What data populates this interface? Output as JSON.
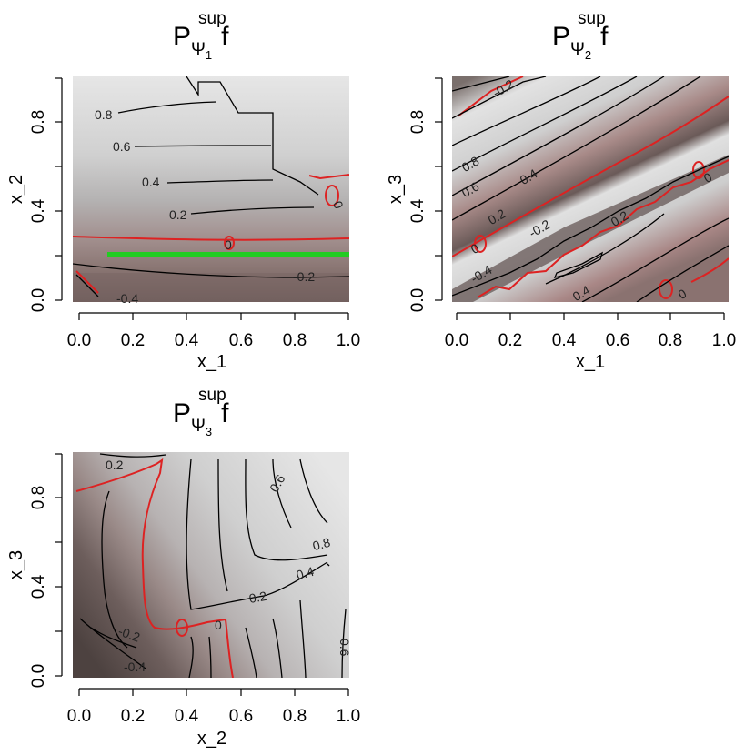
{
  "chart_data": [
    {
      "type": "heatmap",
      "title": {
        "main": "P",
        "sup": "sup",
        "sub": "Ψ",
        "subsub": "1",
        "suffix": "f"
      },
      "xlabel": "x_1",
      "ylabel": "x_2",
      "xlim": [
        0,
        1
      ],
      "ylim": [
        0,
        1
      ],
      "xticks": [
        "0.0",
        "0.2",
        "0.4",
        "0.6",
        "0.8",
        "1.0"
      ],
      "yticks": [
        "0.0",
        "0.4",
        "0.8"
      ],
      "contour_labels": [
        "0.8",
        "0.6",
        "0.4",
        "0.2",
        "0",
        "-0.2",
        "-0.4",
        "0"
      ],
      "highlight_segment": {
        "x": [
          0.11,
          1.0
        ],
        "y": [
          0.2,
          0.2
        ],
        "color": "#22cc22"
      }
    },
    {
      "type": "heatmap",
      "title": {
        "main": "P",
        "sup": "sup",
        "sub": "Ψ",
        "subsub": "2",
        "suffix": "f"
      },
      "xlabel": "x_1",
      "ylabel": "x_3",
      "xlim": [
        0,
        1
      ],
      "ylim": [
        0,
        1
      ],
      "xticks": [
        "0.0",
        "0.2",
        "0.4",
        "0.6",
        "0.8",
        "1.0"
      ],
      "yticks": [
        "0.0",
        "0.4",
        "0.8"
      ],
      "contour_labels": [
        "-0.2",
        "0.8",
        "0.6",
        "0.4",
        "0.2",
        "0",
        "-0.2",
        "-0.4",
        "0.2",
        "0.4",
        "0",
        "0"
      ]
    },
    {
      "type": "heatmap",
      "title": {
        "main": "P",
        "sup": "sup",
        "sub": "Ψ",
        "subsub": "3",
        "suffix": "f"
      },
      "xlabel": "x_2",
      "ylabel": "x_3",
      "xlim": [
        0,
        1
      ],
      "ylim": [
        0,
        1
      ],
      "xticks": [
        "0.0",
        "0.2",
        "0.4",
        "0.6",
        "0.8",
        "1.0"
      ],
      "yticks": [
        "0.0",
        "0.4",
        "0.8"
      ],
      "contour_labels": [
        "0.2",
        "0.6",
        "0.8",
        "0.4",
        "0.2",
        "0",
        "-0.2",
        "-0.4",
        "0.6"
      ]
    }
  ],
  "colors": {
    "zero_contour": "#dd2222",
    "contour": "#000000",
    "highlight": "#22cc22",
    "low_fill": "#4a3e3c",
    "high_fill": "#e4e4e4"
  }
}
